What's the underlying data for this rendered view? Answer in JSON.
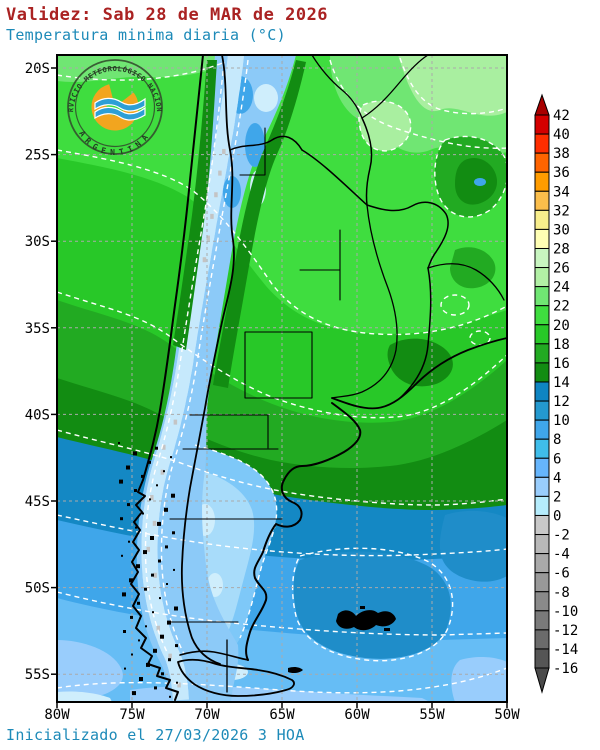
{
  "header": {
    "validity": "Validez: Sab 28 de MAR de 2026",
    "validity_color": "#aa2222",
    "subtitle": "Temperatura minima diaria (°C)",
    "subtitle_color": "#1d8ab8"
  },
  "footer": {
    "init_text": "Inicializado el 27/03/2026 3 HOA",
    "color": "#1d8ab8"
  },
  "logo": {
    "top_text": "SERVICIO METEOROLÓGICO NACIONAL",
    "bottom_text": "ARGENTINA",
    "orange": "#f2a51f",
    "wave_blue": "#2d9fd6",
    "ring_color": "#33502e"
  },
  "map": {
    "lat_labels": [
      "20S",
      "25S",
      "30S",
      "35S",
      "40S",
      "45S",
      "50S",
      "55S"
    ],
    "lon_labels": [
      "80W",
      "75W",
      "70W",
      "65W",
      "60W",
      "55W",
      "50W"
    ],
    "grid_color": "#aaaaaa",
    "border_color": "#000000",
    "contour_color": "#ffffff"
  },
  "colorbar": {
    "unit": "°C",
    "labels": [
      "42",
      "40",
      "38",
      "36",
      "34",
      "32",
      "30",
      "28",
      "26",
      "24",
      "22",
      "20",
      "18",
      "16",
      "14",
      "12",
      "10",
      "8",
      "6",
      "4",
      "2",
      "0",
      "-2",
      "-4",
      "-6",
      "-8",
      "-10",
      "-12",
      "-14",
      "-16"
    ],
    "cell_colors": [
      "#d40000",
      "#ff2e00",
      "#ff6400",
      "#ff9c00",
      "#fbbe4b",
      "#f8ee8c",
      "#ffffb4",
      "#c8f5c0",
      "#b2f0a5",
      "#70e673",
      "#3fdd3f",
      "#28c828",
      "#22aa22",
      "#128c12",
      "#0f85c2",
      "#2499cf",
      "#3fa6ea",
      "#3fbdea",
      "#66b5fc",
      "#99cdfc",
      "#b5ecfc",
      "#c8c8c8",
      "#b8b8b8",
      "#a9a9a9",
      "#999999",
      "#8a8a8a",
      "#7a7a7a",
      "#6b6b6b",
      "#555555"
    ],
    "top_arrow_color": "#a80000",
    "bottom_arrow_color": "#4a4a4a"
  }
}
